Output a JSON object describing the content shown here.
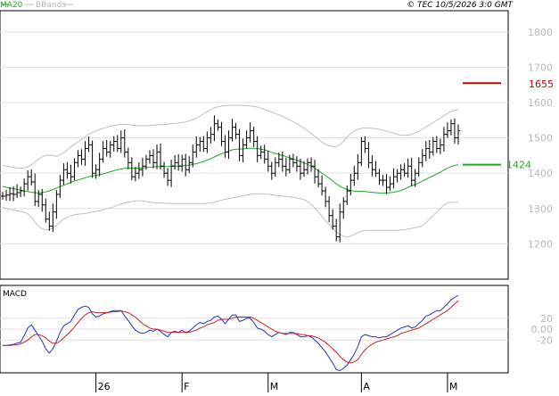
{
  "header": {
    "legend_ma": "MA20",
    "legend_bb": "BBands",
    "copyright": "© TEC 10/5/2026 3:0 GMT"
  },
  "colors": {
    "price": "#000000",
    "ma": "#22aa22",
    "bbands": "#c0c0c0",
    "macd": "#2233cc",
    "signal": "#cc2222",
    "grid": "#e0e0e0",
    "resistance": "#cc0000",
    "support": "#22aa22",
    "axis_text": "#b8b8b8"
  },
  "price_panel": {
    "y_axis": {
      "min": 1100,
      "max": 1860,
      "ticks": [
        "1200",
        "1300",
        "1400",
        "1500",
        "1600",
        "1700",
        "1800"
      ]
    },
    "levels": [
      {
        "name": "resistance",
        "value": 1655,
        "label": "1655"
      },
      {
        "name": "support",
        "value": 1424,
        "label": "1424"
      }
    ]
  },
  "macd_panel": {
    "title": "MACD",
    "y_axis": {
      "min": -80,
      "max": 80,
      "ticks": [
        "20",
        "0.00",
        "-20"
      ]
    }
  },
  "x_axis": {
    "labels": [
      {
        "label": "26",
        "index": 26
      },
      {
        "label": "F",
        "index": 50
      },
      {
        "label": "M",
        "index": 74
      },
      {
        "label": "A",
        "index": 100
      },
      {
        "label": "M",
        "index": 124
      }
    ]
  },
  "chart_data": {
    "type": "line",
    "title": "",
    "x": [
      0,
      1,
      2,
      3,
      4,
      5,
      6,
      7,
      8,
      9,
      10,
      11,
      12,
      13,
      14,
      15,
      16,
      17,
      18,
      19,
      20,
      21,
      22,
      23,
      24,
      25,
      26,
      27,
      28,
      29,
      30,
      31,
      32,
      33,
      34,
      35,
      36,
      37,
      38,
      39,
      40,
      41,
      42,
      43,
      44,
      45,
      46,
      47,
      48,
      49,
      50,
      51,
      52,
      53,
      54,
      55,
      56,
      57,
      58,
      59,
      60,
      61,
      62,
      63,
      64,
      65,
      66,
      67,
      68,
      69,
      70,
      71,
      72,
      73,
      74,
      75,
      76,
      77,
      78,
      79,
      80,
      81,
      82,
      83,
      84,
      85,
      86,
      87,
      88,
      89,
      90,
      91,
      92,
      93,
      94,
      95,
      96,
      97,
      98,
      99,
      100,
      101,
      102,
      103,
      104,
      105,
      106,
      107,
      108,
      109,
      110,
      111,
      112,
      113,
      114,
      115,
      116,
      117,
      118,
      119,
      120,
      121,
      122,
      123,
      124,
      125,
      126,
      127
    ],
    "series": [
      {
        "name": "Price",
        "values": [
          1335,
          1338,
          1342,
          1340,
          1345,
          1350,
          1370,
          1390,
          1375,
          1320,
          1340,
          1310,
          1270,
          1250,
          1290,
          1340,
          1380,
          1410,
          1400,
          1390,
          1430,
          1450,
          1440,
          1470,
          1480,
          1400,
          1410,
          1440,
          1470,
          1460,
          1480,
          1490,
          1470,
          1500,
          1460,
          1430,
          1390,
          1400,
          1410,
          1420,
          1440,
          1450,
          1430,
          1460,
          1420,
          1400,
          1380,
          1420,
          1430,
          1420,
          1440,
          1410,
          1430,
          1460,
          1480,
          1490,
          1470,
          1500,
          1510,
          1540,
          1530,
          1490,
          1460,
          1500,
          1530,
          1510,
          1450,
          1480,
          1500,
          1520,
          1490,
          1450,
          1460,
          1440,
          1420,
          1400,
          1430,
          1440,
          1420,
          1410,
          1440,
          1430,
          1420,
          1400,
          1410,
          1430,
          1420,
          1390,
          1370,
          1350,
          1320,
          1280,
          1250,
          1220,
          1290,
          1320,
          1350,
          1380,
          1400,
          1430,
          1490,
          1470,
          1430,
          1410,
          1400,
          1380,
          1380,
          1360,
          1370,
          1390,
          1400,
          1410,
          1400,
          1420,
          1380,
          1400,
          1430,
          1450,
          1470,
          1460,
          1490,
          1470,
          1480,
          1510,
          1520,
          1540,
          1500,
          1520
        ]
      },
      {
        "name": "MA20",
        "values": [
          1362,
          1360,
          1358,
          1356,
          1354,
          1352,
          1350,
          1348,
          1346,
          1345,
          1344,
          1345,
          1347,
          1350,
          1354,
          1358,
          1362,
          1366,
          1370,
          1374,
          1378,
          1381,
          1384,
          1387,
          1390,
          1392,
          1394,
          1396,
          1398,
          1401,
          1404,
          1407,
          1410,
          1412,
          1414,
          1414,
          1414,
          1414,
          1414,
          1415,
          1416,
          1417,
          1418,
          1419,
          1419,
          1419,
          1419,
          1420,
          1420,
          1420,
          1421,
          1422,
          1423,
          1425,
          1427,
          1430,
          1433,
          1437,
          1441,
          1446,
          1451,
          1455,
          1458,
          1462,
          1466,
          1468,
          1468,
          1469,
          1470,
          1471,
          1471,
          1470,
          1468,
          1466,
          1463,
          1459,
          1456,
          1453,
          1450,
          1447,
          1444,
          1440,
          1437,
          1433,
          1429,
          1425,
          1420,
          1414,
          1407,
          1400,
          1393,
          1386,
          1378,
          1370,
          1363,
          1358,
          1354,
          1351,
          1349,
          1349,
          1349,
          1348,
          1347,
          1346,
          1345,
          1344,
          1344,
          1344,
          1345,
          1346,
          1348,
          1351,
          1355,
          1360,
          1364,
          1368,
          1373,
          1378,
          1383,
          1388,
          1393,
          1398,
          1403,
          1409,
          1414,
          1419,
          1422,
          1424
        ]
      },
      {
        "name": "BB Upper",
        "values": [
          1422,
          1420,
          1418,
          1416,
          1415,
          1414,
          1415,
          1418,
          1424,
          1432,
          1440,
          1446,
          1450,
          1451,
          1450,
          1448,
          1452,
          1458,
          1466,
          1474,
          1482,
          1489,
          1496,
          1503,
          1510,
          1515,
          1520,
          1524,
          1527,
          1530,
          1533,
          1535,
          1537,
          1538,
          1538,
          1538,
          1536,
          1535,
          1534,
          1534,
          1534,
          1535,
          1536,
          1537,
          1537,
          1538,
          1539,
          1540,
          1541,
          1542,
          1543,
          1545,
          1548,
          1552,
          1556,
          1562,
          1568,
          1574,
          1580,
          1585,
          1588,
          1590,
          1591,
          1592,
          1592,
          1592,
          1592,
          1592,
          1591,
          1590,
          1589,
          1587,
          1584,
          1581,
          1577,
          1573,
          1569,
          1565,
          1561,
          1556,
          1551,
          1546,
          1540,
          1534,
          1527,
          1520,
          1512,
          1504,
          1496,
          1488,
          1482,
          1478,
          1476,
          1475,
          1480,
          1490,
          1502,
          1512,
          1520,
          1524,
          1527,
          1528,
          1528,
          1527,
          1526,
          1524,
          1522,
          1519,
          1516,
          1513,
          1510,
          1508,
          1507,
          1508,
          1510,
          1514,
          1519,
          1525,
          1531,
          1537,
          1543,
          1550,
          1556,
          1563,
          1569,
          1575,
          1578,
          1580
        ]
      },
      {
        "name": "BB Lower",
        "values": [
          1304,
          1300,
          1298,
          1296,
          1294,
          1292,
          1290,
          1285,
          1275,
          1262,
          1250,
          1243,
          1240,
          1240,
          1245,
          1252,
          1262,
          1270,
          1276,
          1280,
          1282,
          1284,
          1285,
          1286,
          1288,
          1290,
          1292,
          1294,
          1296,
          1299,
          1302,
          1305,
          1309,
          1312,
          1316,
          1318,
          1320,
          1322,
          1322,
          1322,
          1320,
          1318,
          1317,
          1316,
          1316,
          1315,
          1314,
          1314,
          1314,
          1314,
          1314,
          1314,
          1314,
          1314,
          1314,
          1314,
          1314,
          1315,
          1316,
          1318,
          1321,
          1324,
          1326,
          1328,
          1330,
          1332,
          1334,
          1336,
          1338,
          1340,
          1342,
          1342,
          1342,
          1341,
          1340,
          1339,
          1337,
          1336,
          1335,
          1334,
          1333,
          1332,
          1330,
          1328,
          1325,
          1320,
          1312,
          1302,
          1290,
          1278,
          1266,
          1255,
          1244,
          1234,
          1226,
          1222,
          1220,
          1222,
          1226,
          1232,
          1236,
          1238,
          1238,
          1238,
          1238,
          1238,
          1238,
          1238,
          1238,
          1238,
          1238,
          1239,
          1240,
          1242,
          1244,
          1246,
          1248,
          1252,
          1260,
          1270,
          1280,
          1290,
          1300,
          1310,
          1316,
          1318,
          1318,
          1318
        ]
      }
    ],
    "macd": {
      "macd": [
        -30,
        -30,
        -29,
        -28,
        -26,
        -24,
        -12,
        2,
        8,
        -2,
        -12,
        -22,
        -36,
        -44,
        -36,
        -22,
        -6,
        6,
        10,
        14,
        26,
        36,
        40,
        42,
        40,
        28,
        22,
        24,
        28,
        30,
        32,
        34,
        34,
        34,
        24,
        16,
        6,
        -2,
        -6,
        -8,
        -6,
        -2,
        -4,
        0,
        -4,
        -10,
        -14,
        -6,
        -4,
        -6,
        -2,
        -6,
        -4,
        2,
        8,
        12,
        10,
        14,
        16,
        22,
        24,
        18,
        10,
        18,
        26,
        26,
        14,
        16,
        20,
        20,
        12,
        2,
        0,
        -4,
        -10,
        -14,
        -10,
        -6,
        -8,
        -10,
        -6,
        -6,
        -10,
        -14,
        -14,
        -12,
        -14,
        -20,
        -26,
        -34,
        -42,
        -52,
        -62,
        -74,
        -76,
        -72,
        -66,
        -56,
        -46,
        -32,
        -14,
        -10,
        -12,
        -14,
        -14,
        -16,
        -14,
        -14,
        -10,
        -6,
        -2,
        2,
        4,
        6,
        2,
        4,
        10,
        16,
        24,
        26,
        30,
        34,
        34,
        40,
        46,
        54,
        58,
        62
      ],
      "signal": [
        -30,
        -30,
        -30,
        -29,
        -29,
        -27,
        -24,
        -20,
        -14,
        -10,
        -10,
        -12,
        -16,
        -22,
        -26,
        -26,
        -22,
        -16,
        -10,
        -4,
        4,
        12,
        20,
        26,
        30,
        32,
        30,
        30,
        30,
        30,
        31,
        32,
        32,
        33,
        32,
        30,
        26,
        22,
        16,
        10,
        6,
        2,
        0,
        0,
        -2,
        -4,
        -6,
        -6,
        -6,
        -6,
        -6,
        -6,
        -6,
        -4,
        -2,
        2,
        4,
        8,
        10,
        12,
        16,
        18,
        18,
        18,
        20,
        22,
        22,
        22,
        22,
        22,
        20,
        16,
        12,
        8,
        4,
        0,
        -4,
        -6,
        -8,
        -8,
        -8,
        -8,
        -8,
        -10,
        -10,
        -12,
        -12,
        -14,
        -16,
        -20,
        -24,
        -30,
        -36,
        -42,
        -50,
        -56,
        -60,
        -62,
        -60,
        -56,
        -46,
        -38,
        -32,
        -28,
        -24,
        -22,
        -20,
        -18,
        -16,
        -14,
        -12,
        -8,
        -6,
        -4,
        -2,
        0,
        2,
        6,
        10,
        14,
        18,
        22,
        26,
        30,
        34,
        40,
        46,
        52
      ]
    }
  }
}
